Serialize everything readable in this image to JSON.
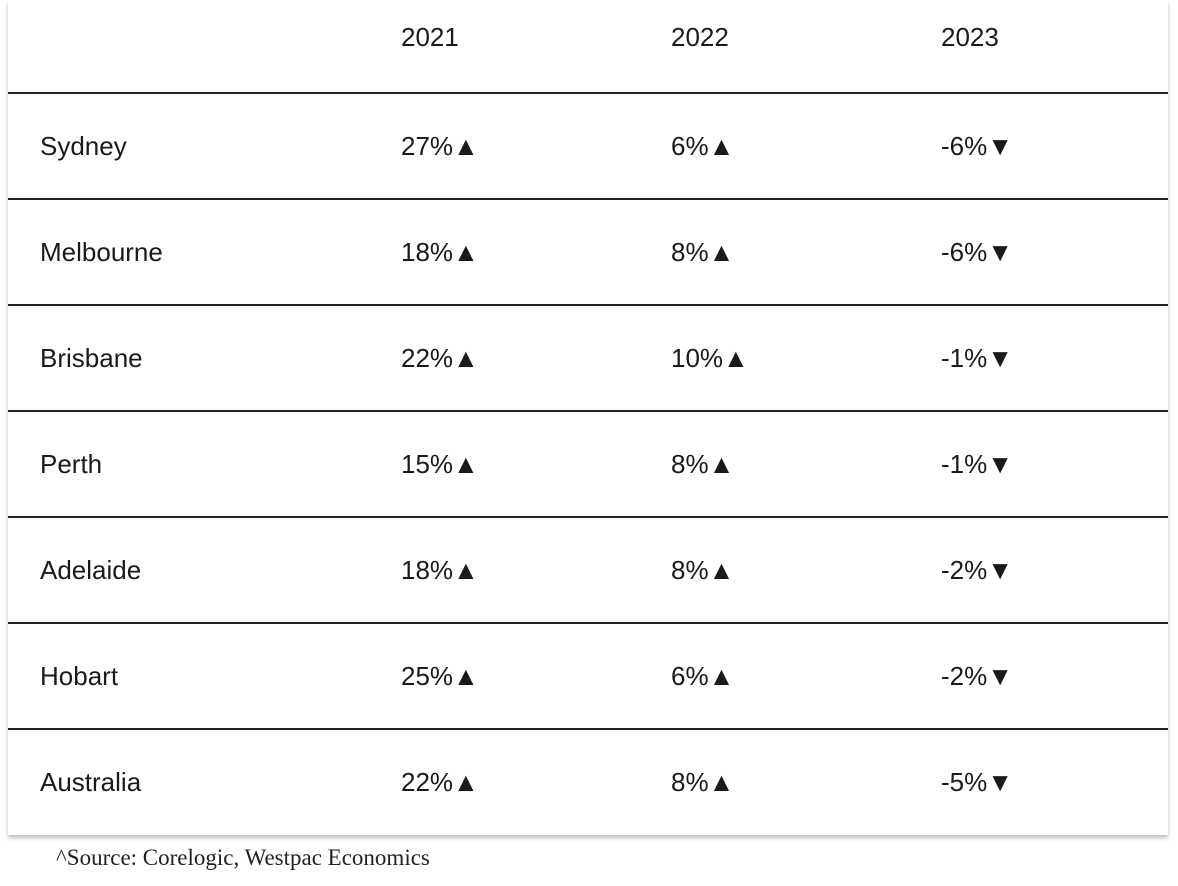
{
  "table": {
    "header": [
      "2021",
      "2022",
      "2023"
    ],
    "rows": [
      {
        "label": "Sydney",
        "cells": [
          "27%▲",
          "6%▲",
          "-6%▼"
        ]
      },
      {
        "label": "Melbourne",
        "cells": [
          "18%▲",
          "8%▲",
          "-6%▼"
        ]
      },
      {
        "label": "Brisbane",
        "cells": [
          "22%▲",
          "10%▲",
          "-1%▼"
        ]
      },
      {
        "label": "Perth",
        "cells": [
          "15%▲",
          "8%▲",
          "-1%▼"
        ]
      },
      {
        "label": "Adelaide",
        "cells": [
          "18%▲",
          "8%▲",
          "-2%▼"
        ]
      },
      {
        "label": "Hobart",
        "cells": [
          "25%▲",
          "6%▲",
          "-2%▼"
        ]
      },
      {
        "label": "Australia",
        "cells": [
          "22%▲",
          "8%▲",
          "-5%▼"
        ]
      }
    ]
  },
  "footnote": "^Source: Corelogic, Westpac Economics"
}
